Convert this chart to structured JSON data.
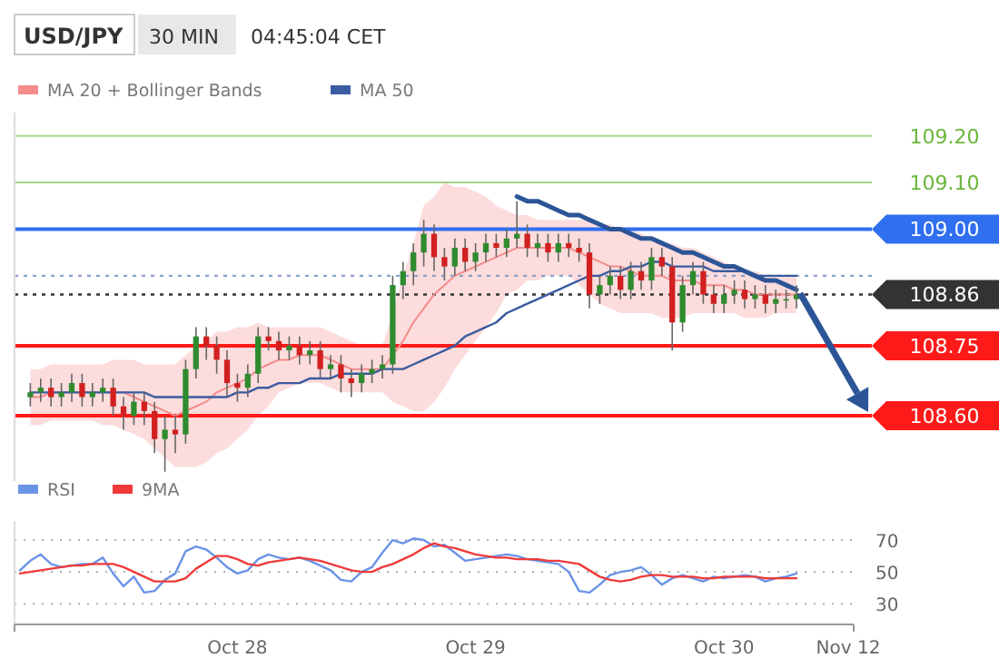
{
  "chart_data": [
    {
      "type": "candlestick",
      "title": "USD/JPY",
      "subtitle": "30 MIN",
      "annotations": [
        "04:45:04 CET"
      ],
      "legend": "top left",
      "tick_labels": "y",
      "ylim": [
        108.46,
        109.25
      ],
      "yticks": [
        {
          "value": 108.6,
          "label": "108.60"
        },
        108.75,
        108.86,
        {
          "value": 109.0,
          "label": "109.00"
        },
        {
          "value": 109.1,
          "label": "109.10"
        },
        {
          "value": 109.2,
          "label": "109.20"
        }
      ],
      "categories": [
        null,
        null,
        null,
        null,
        null,
        null,
        null,
        null,
        null,
        null,
        null,
        null,
        null,
        null,
        null,
        null,
        null,
        null,
        null,
        null,
        null,
        null,
        null,
        null,
        null,
        null,
        null,
        null,
        null,
        null,
        null,
        null,
        null,
        null,
        null,
        null,
        null,
        null,
        null,
        null,
        null,
        null,
        null,
        null,
        null,
        null,
        null,
        null,
        null,
        null,
        null,
        null,
        null,
        null,
        null,
        null,
        null,
        null,
        null,
        null,
        null,
        null,
        null,
        null,
        null,
        null,
        null,
        null,
        null,
        null,
        null,
        null,
        null,
        null,
        null,
        null,
        null,
        null,
        null,
        null,
        null
      ],
      "ohlc": [
        null,
        [
          108.64,
          108.67,
          108.62,
          108.65
        ],
        [
          108.65,
          108.68,
          108.63,
          108.66
        ],
        [
          108.66,
          108.68,
          108.62,
          108.64
        ],
        [
          108.64,
          108.67,
          108.62,
          108.65
        ],
        [
          108.65,
          108.69,
          108.63,
          108.67
        ],
        [
          108.67,
          108.69,
          108.62,
          108.64
        ],
        [
          108.64,
          108.67,
          108.62,
          108.65
        ],
        [
          108.65,
          108.68,
          108.63,
          108.66
        ],
        [
          108.66,
          108.68,
          108.6,
          108.62
        ],
        [
          108.62,
          108.64,
          108.57,
          108.6
        ],
        [
          108.6,
          108.65,
          108.58,
          108.63
        ],
        [
          108.63,
          108.65,
          108.58,
          108.61
        ],
        [
          108.61,
          108.63,
          108.52,
          108.55
        ],
        [
          108.55,
          108.6,
          108.48,
          108.57
        ],
        [
          108.57,
          108.6,
          108.52,
          108.56
        ],
        [
          108.56,
          108.72,
          108.54,
          108.7
        ],
        [
          108.7,
          108.79,
          108.68,
          108.77
        ],
        [
          108.77,
          108.79,
          108.72,
          108.75
        ],
        [
          108.75,
          108.77,
          108.69,
          108.72
        ],
        [
          108.72,
          108.74,
          108.64,
          108.67
        ],
        [
          108.67,
          108.69,
          108.63,
          108.66
        ],
        [
          108.66,
          108.71,
          108.64,
          108.69
        ],
        [
          108.69,
          108.79,
          108.67,
          108.77
        ],
        [
          108.77,
          108.79,
          108.74,
          108.76
        ],
        [
          108.76,
          108.78,
          108.72,
          108.74
        ],
        [
          108.74,
          108.77,
          108.72,
          108.75
        ],
        [
          108.75,
          108.77,
          108.71,
          108.73
        ],
        [
          108.73,
          108.76,
          108.71,
          108.74
        ],
        [
          108.74,
          108.76,
          108.68,
          108.7
        ],
        [
          108.7,
          108.73,
          108.68,
          108.71
        ],
        [
          108.71,
          108.73,
          108.65,
          108.68
        ],
        [
          108.68,
          108.7,
          108.64,
          108.67
        ],
        [
          108.67,
          108.71,
          108.65,
          108.69
        ],
        [
          108.69,
          108.72,
          108.67,
          108.7
        ],
        [
          108.7,
          108.73,
          108.68,
          108.71
        ],
        [
          108.71,
          108.9,
          108.69,
          108.88
        ],
        [
          108.88,
          108.93,
          108.85,
          108.91
        ],
        [
          108.91,
          108.97,
          108.88,
          108.95
        ],
        [
          108.95,
          109.02,
          108.92,
          108.99
        ],
        [
          108.99,
          109.01,
          108.91,
          108.94
        ],
        [
          108.94,
          108.96,
          108.89,
          108.92
        ],
        [
          108.92,
          108.98,
          108.9,
          108.96
        ],
        [
          108.96,
          108.98,
          108.91,
          108.93
        ],
        [
          108.93,
          108.97,
          108.91,
          108.95
        ],
        [
          108.95,
          108.99,
          108.93,
          108.97
        ],
        [
          108.97,
          108.99,
          108.94,
          108.96
        ],
        [
          108.96,
          109.0,
          108.94,
          108.98
        ],
        [
          108.98,
          109.06,
          108.96,
          108.99
        ],
        [
          108.99,
          109.01,
          108.94,
          108.96
        ],
        [
          108.96,
          108.99,
          108.94,
          108.97
        ],
        [
          108.97,
          108.99,
          108.93,
          108.95
        ],
        [
          108.95,
          108.99,
          108.93,
          108.97
        ],
        [
          108.97,
          108.99,
          108.94,
          108.96
        ],
        [
          108.96,
          108.98,
          108.93,
          108.95
        ],
        [
          108.95,
          108.97,
          108.83,
          108.86
        ],
        [
          108.86,
          108.9,
          108.84,
          108.88
        ],
        [
          108.88,
          108.92,
          108.86,
          108.9
        ],
        [
          108.9,
          108.92,
          108.85,
          108.87
        ],
        [
          108.87,
          108.93,
          108.85,
          108.91
        ],
        [
          108.91,
          108.93,
          108.87,
          108.89
        ],
        [
          108.89,
          108.96,
          108.87,
          108.94
        ],
        [
          108.94,
          108.96,
          108.9,
          108.92
        ],
        [
          108.92,
          108.94,
          108.74,
          108.8
        ],
        [
          108.8,
          108.9,
          108.78,
          108.88
        ],
        [
          108.88,
          108.93,
          108.86,
          108.91
        ],
        [
          108.91,
          108.93,
          108.84,
          108.86
        ],
        [
          108.86,
          108.88,
          108.82,
          108.84
        ],
        [
          108.84,
          108.88,
          108.82,
          108.86
        ],
        [
          108.86,
          108.89,
          108.84,
          108.87
        ],
        [
          108.87,
          108.89,
          108.83,
          108.85
        ],
        [
          108.85,
          108.88,
          108.83,
          108.86
        ],
        [
          108.86,
          108.88,
          108.82,
          108.84
        ],
        [
          108.84,
          108.87,
          108.82,
          108.85
        ],
        [
          108.85,
          108.87,
          108.83,
          108.85
        ],
        [
          108.85,
          108.88,
          108.83,
          108.86
        ],
        null,
        null,
        null,
        null,
        null
      ],
      "series": [
        {
          "name": "MA 20 + Bollinger Bands",
          "type": "line",
          "color": "#f48c8c",
          "values": [
            null,
            108.64,
            108.64,
            108.65,
            108.65,
            108.65,
            108.65,
            108.65,
            108.65,
            108.65,
            108.65,
            108.64,
            108.63,
            108.62,
            108.61,
            108.6,
            108.61,
            108.62,
            108.63,
            108.65,
            108.66,
            108.67,
            108.68,
            108.7,
            108.71,
            108.72,
            108.72,
            108.73,
            108.73,
            108.73,
            108.72,
            108.71,
            108.7,
            108.7,
            108.7,
            108.7,
            108.73,
            108.76,
            108.8,
            108.83,
            108.86,
            108.88,
            108.9,
            108.91,
            108.92,
            108.93,
            108.94,
            108.95,
            108.96,
            108.96,
            108.96,
            108.96,
            108.96,
            108.96,
            108.95,
            108.94,
            108.93,
            108.92,
            108.92,
            108.91,
            108.9,
            108.9,
            108.9,
            108.89,
            108.89,
            108.89,
            108.88,
            108.88,
            108.88,
            108.87,
            108.87,
            108.86,
            108.86,
            108.86,
            108.86,
            108.86,
            null,
            null,
            null,
            null,
            null
          ],
          "lower": [
            null,
            108.58,
            108.58,
            108.59,
            108.59,
            108.59,
            108.59,
            108.59,
            108.58,
            108.58,
            108.57,
            108.56,
            108.55,
            108.53,
            108.51,
            108.49,
            108.49,
            108.49,
            108.5,
            108.52,
            108.53,
            108.55,
            108.57,
            108.6,
            108.62,
            108.65,
            108.66,
            108.67,
            108.67,
            108.67,
            108.66,
            108.65,
            108.65,
            108.65,
            108.65,
            108.65,
            108.63,
            108.62,
            108.61,
            108.61,
            108.63,
            108.66,
            108.7,
            108.73,
            108.76,
            108.79,
            108.82,
            108.86,
            108.87,
            108.89,
            108.89,
            108.9,
            108.9,
            108.9,
            108.88,
            108.86,
            108.84,
            108.83,
            108.82,
            108.82,
            108.82,
            108.82,
            108.81,
            108.81,
            108.81,
            108.82,
            108.82,
            108.82,
            108.82,
            108.82,
            108.81,
            108.81,
            108.81,
            108.82,
            108.82,
            108.82,
            null,
            null,
            null,
            null,
            null
          ],
          "upper": [
            null,
            108.7,
            108.7,
            108.71,
            108.71,
            108.71,
            108.71,
            108.71,
            108.71,
            108.72,
            108.72,
            108.72,
            108.71,
            108.71,
            108.71,
            108.71,
            108.73,
            108.75,
            108.76,
            108.78,
            108.78,
            108.79,
            108.79,
            108.8,
            108.79,
            108.79,
            108.79,
            108.79,
            108.79,
            108.79,
            108.78,
            108.77,
            108.76,
            108.75,
            108.75,
            108.75,
            108.82,
            108.9,
            108.97,
            109.05,
            109.07,
            109.1,
            109.09,
            109.09,
            109.08,
            109.07,
            109.05,
            109.04,
            109.03,
            109.03,
            109.02,
            109.02,
            109.02,
            109.02,
            109.02,
            109.02,
            109.01,
            109.01,
            109.0,
            109.0,
            108.99,
            108.98,
            108.97,
            108.97,
            108.96,
            108.96,
            108.95,
            108.94,
            108.93,
            108.92,
            108.91,
            108.91,
            108.9,
            108.9,
            108.9,
            108.9,
            null,
            null,
            null,
            null,
            null
          ]
        },
        {
          "name": "MA 50",
          "type": "line",
          "color": "#3a5ca0",
          "values": [
            null,
            108.65,
            108.65,
            108.65,
            108.65,
            108.65,
            108.65,
            108.65,
            108.65,
            108.65,
            108.65,
            108.65,
            108.65,
            108.64,
            108.64,
            108.64,
            108.64,
            108.64,
            108.64,
            108.64,
            108.64,
            108.65,
            108.65,
            108.66,
            108.66,
            108.67,
            108.67,
            108.67,
            108.68,
            108.68,
            108.68,
            108.69,
            108.69,
            108.69,
            108.69,
            108.7,
            108.7,
            108.7,
            108.71,
            108.72,
            108.73,
            108.74,
            108.75,
            108.77,
            108.78,
            108.79,
            108.8,
            108.82,
            108.83,
            108.84,
            108.85,
            108.86,
            108.87,
            108.88,
            108.89,
            108.9,
            108.9,
            108.91,
            108.91,
            108.92,
            108.92,
            108.93,
            108.93,
            108.92,
            108.92,
            108.92,
            108.92,
            108.91,
            108.91,
            108.91,
            108.91,
            108.9,
            108.9,
            108.9,
            108.9,
            108.9,
            null,
            null,
            null,
            null,
            null
          ]
        },
        {
          "type": "line",
          "color": "#2c5597",
          "values": [
            null,
            null,
            null,
            null,
            null,
            null,
            null,
            null,
            null,
            null,
            null,
            null,
            null,
            null,
            null,
            null,
            null,
            null,
            null,
            null,
            null,
            null,
            null,
            null,
            null,
            null,
            null,
            null,
            null,
            null,
            null,
            null,
            null,
            null,
            null,
            null,
            null,
            null,
            null,
            null,
            null,
            null,
            null,
            null,
            null,
            null,
            null,
            null,
            109.07,
            109.06,
            109.06,
            109.05,
            109.04,
            109.03,
            109.03,
            109.02,
            109.01,
            109.0,
            109.0,
            108.99,
            108.98,
            108.98,
            108.97,
            108.96,
            108.95,
            108.95,
            108.94,
            108.93,
            108.92,
            108.92,
            108.91,
            108.9,
            108.89,
            108.89,
            108.88,
            108.87,
            null,
            null,
            null,
            null,
            null
          ]
        }
      ],
      "ref_lines": [
        {
          "axis": "y",
          "value": 109.2,
          "color": "#6ab63a"
        },
        {
          "axis": "y",
          "value": 109.1,
          "color": "#6ab63a"
        },
        {
          "axis": "y",
          "value": 109.0,
          "color": "#2f6ff0",
          "line_style": "solid"
        },
        {
          "axis": "y",
          "value": 108.9,
          "color": "#8a9fc9",
          "line_style": "dotted"
        },
        {
          "axis": "y",
          "value": 108.86,
          "color": "#333333",
          "line_style": "dotted"
        },
        {
          "axis": "y",
          "value": 108.75,
          "color": "#ff1a1a",
          "line_style": "solid"
        },
        {
          "axis": "y",
          "value": 108.6,
          "color": "#ff1a1a",
          "line_style": "solid"
        }
      ]
    },
    {
      "type": "line",
      "legend": "top left",
      "grid": "y",
      "ylim": [
        17,
        82
      ],
      "yticks": [
        30,
        50,
        70
      ],
      "categories": [
        null,
        null,
        null,
        null,
        null,
        null,
        null,
        null,
        null,
        null,
        null,
        null,
        null,
        null,
        null,
        null,
        null,
        null,
        null,
        null,
        null,
        "Oct 28",
        null,
        null,
        null,
        null,
        null,
        null,
        null,
        null,
        null,
        null,
        null,
        null,
        null,
        null,
        null,
        null,
        null,
        null,
        null,
        null,
        null,
        null,
        "Oct 29",
        null,
        null,
        null,
        null,
        null,
        null,
        null,
        null,
        null,
        null,
        null,
        null,
        null,
        null,
        null,
        null,
        null,
        null,
        null,
        null,
        null,
        null,
        null,
        "Oct 30",
        null,
        null,
        null,
        null,
        null,
        null,
        null,
        null,
        null,
        null,
        null,
        "Nov 12"
      ],
      "series": [
        {
          "name": "RSI",
          "color": "#6a93e6",
          "values": [
            51,
            57,
            61,
            55,
            53,
            54,
            55,
            55,
            59,
            49,
            41,
            47,
            37,
            38,
            45,
            49,
            63,
            66,
            64,
            59,
            53,
            49,
            51,
            58,
            61,
            59,
            58,
            59,
            57,
            54,
            51,
            45,
            44,
            50,
            53,
            62,
            70,
            68,
            71,
            70,
            66,
            67,
            62,
            57,
            58,
            59,
            60,
            61,
            60,
            58,
            57,
            56,
            55,
            50,
            38,
            37,
            42,
            48,
            50,
            51,
            53,
            48,
            42,
            46,
            48,
            46,
            44,
            47,
            46,
            47,
            48,
            47,
            44,
            46,
            47,
            49,
            null,
            null,
            null,
            null,
            null
          ]
        },
        {
          "name": "9MA",
          "color": "#f03a3a",
          "values": [
            49,
            50,
            51,
            52,
            53,
            54,
            54,
            55,
            55,
            55,
            53,
            50,
            47,
            44,
            44,
            44,
            46,
            52,
            56,
            60,
            60,
            58,
            55,
            54,
            56,
            57,
            58,
            59,
            58,
            57,
            55,
            53,
            51,
            50,
            50,
            53,
            55,
            58,
            61,
            65,
            68,
            66,
            65,
            63,
            61,
            60,
            59,
            59,
            58,
            58,
            58,
            57,
            57,
            56,
            55,
            51,
            47,
            45,
            44,
            45,
            47,
            48,
            48,
            47,
            47,
            47,
            46,
            46,
            47,
            47,
            47,
            47,
            46,
            46,
            46,
            46,
            null,
            null,
            null,
            null,
            null
          ]
        }
      ]
    }
  ]
}
